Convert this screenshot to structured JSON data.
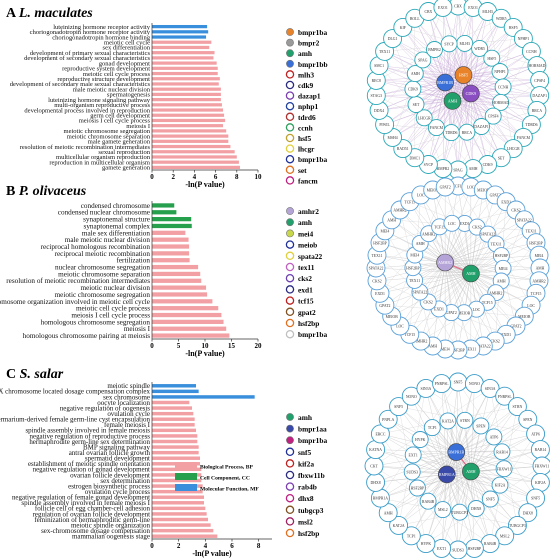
{
  "panels": [
    {
      "letter": "A",
      "species": "L. maculates",
      "xlabel": "-ln(P value)",
      "xticks": [
        0,
        2,
        4,
        6,
        8,
        10
      ],
      "xmax": 10,
      "chart_data": {
        "type": "bar",
        "orientation": "horizontal",
        "xlabel": "-ln(P value)",
        "xlim": [
          0,
          10
        ],
        "categories": [
          "luteinizing hormone receptor activity",
          "choriogonadotropin hormone receptor activity",
          "choriogonadotropin hormone binding",
          "meiotic cell cycle",
          "sex differentiation",
          "development of primary sexual characteristics",
          "development of secondary sexual characteristics",
          "gonad development",
          "reproductive system development",
          "meiotic cell cycle process",
          "reproductive structure development",
          "development of secondary male sexual characteristics",
          "male meiotic nuclear division",
          "spermatogenesis",
          "luteinizing hormone signaling pathway",
          "multi-organism reproductive process",
          "developmental process involved in reproduction",
          "germ cell development",
          "meiosis I cell cycle process",
          "meiosis I",
          "meiotic chromosome segregation",
          "meiotic chromosome separation",
          "male gamete generation",
          "resolution of meiotic recombination intermediates",
          "sexual reproduction",
          "multicellular organism reproduction",
          "reproduction in multicellular organism",
          "gamete generation"
        ],
        "values": [
          5.2,
          5.3,
          5.1,
          5.6,
          5.4,
          5.9,
          5.8,
          6.1,
          6.2,
          6.2,
          6.4,
          6.3,
          6.5,
          6.5,
          6.5,
          6.6,
          6.7,
          6.8,
          6.9,
          6.7,
          7.0,
          7.2,
          7.2,
          7.4,
          7.8,
          8.0,
          8.2,
          8.3
        ],
        "bar_colors": [
          "#3a8fdc",
          "#3a8fdc",
          "#3a8fdc",
          "#f2a0a4",
          "#f2a0a4",
          "#f2a0a4",
          "#f2a0a4",
          "#f2a0a4",
          "#f2a0a4",
          "#f2a0a4",
          "#f2a0a4",
          "#f2a0a4",
          "#f2a0a4",
          "#f2a0a4",
          "#f2a0a4",
          "#f2a0a4",
          "#f2a0a4",
          "#f2a0a4",
          "#f2a0a4",
          "#f2a0a4",
          "#f2a0a4",
          "#f2a0a4",
          "#f2a0a4",
          "#f2a0a4",
          "#f2a0a4",
          "#f2a0a4",
          "#f2a0a4",
          "#f2a0a4"
        ]
      },
      "genes": [
        {
          "name": "bmpr1ba",
          "fill": "#e8832a"
        },
        {
          "name": "bmpr2",
          "fill": "#9a9a9a"
        },
        {
          "name": "amh",
          "fill": "#22a06b"
        },
        {
          "name": "bmpr1bb",
          "fill": "#3a6fd8"
        },
        {
          "name": "mlh3",
          "fill": "#ffffff",
          "stroke": "#c02020"
        },
        {
          "name": "cdk9",
          "fill": "#ffffff",
          "stroke": "#2a2a80"
        },
        {
          "name": "dazap1",
          "fill": "#ffffff",
          "stroke": "#7a3fb0"
        },
        {
          "name": "nphp1",
          "fill": "#ffffff",
          "stroke": "#2040a0"
        },
        {
          "name": "tdrd6",
          "fill": "#ffffff",
          "stroke": "#b03030"
        },
        {
          "name": "ccnh",
          "fill": "#ffffff",
          "stroke": "#30a060"
        },
        {
          "name": "hsf5",
          "fill": "#ffffff",
          "stroke": "#c0a030"
        },
        {
          "name": "lhcgr",
          "fill": "#ffffff",
          "stroke": "#e0d040"
        },
        {
          "name": "bmpr1ba",
          "fill": "#ffffff",
          "stroke": "#20309a"
        },
        {
          "name": "set",
          "fill": "#ffffff",
          "stroke": "#e07020"
        },
        {
          "name": "fancm",
          "fill": "#ffffff",
          "stroke": "#c02080"
        }
      ],
      "network_labels": [
        "CBX",
        "EXO1",
        "MLH3",
        "WDR5",
        "HSF5",
        "NPHP1",
        "CCNH",
        "HORMAD",
        "CPSF4",
        "DAZAP1",
        "BRCA",
        "TDRD6",
        "FANCM",
        "LHCGR",
        "SET",
        "CDK9",
        "AMH",
        "SPAG",
        "BMPR2",
        "SYCP",
        "DMC1",
        "RAD51",
        "MSH4",
        "PIWIL",
        "DDX4",
        "STAG3",
        "REC8",
        "SMC1",
        "TEX11",
        "DLG1",
        "KIF",
        "BOLL"
      ],
      "center_nodes": [
        "CDK9",
        "AMH",
        "BMPR1B",
        "HSF5"
      ]
    },
    {
      "letter": "B",
      "species": "P. olivaceus",
      "xlabel": "-ln(P value)",
      "xticks": [
        0,
        5,
        10,
        15,
        20
      ],
      "xmax": 20,
      "chart_data": {
        "type": "bar",
        "orientation": "horizontal",
        "xlabel": "-ln(P value)",
        "xlim": [
          0,
          20
        ],
        "categories": [
          "condensed chromosome",
          "condensed nuclear chromosome",
          "synaptonemal structure",
          "synaptonemal complex",
          "male sex differentiation",
          "male meiotic nuclear division",
          "reciprocal homologous recombination",
          "reciprocal meiotic recombination",
          "fertilization",
          "nuclear chromosome segregation",
          "meiotic chromosome separation",
          "resolution of meiotic recombination intermediates",
          "meiotic nuclear division",
          "meiotic chromosome segregation",
          "chromosome organization involved in meiotic cell cycle",
          "meiotic cell cycle process",
          "meiosis I cell cycle process",
          "homologous chromosome segregation",
          "meiosis I",
          "homologous chromosome pairing at meiosis"
        ],
        "values": [
          4.2,
          4.6,
          7.4,
          7.5,
          6.3,
          6.9,
          7.0,
          7.0,
          7.1,
          8.7,
          9.1,
          9.3,
          10.2,
          10.4,
          11.4,
          12.5,
          13.1,
          13.5,
          14.0,
          14.6
        ],
        "bar_colors": [
          "#27a04e",
          "#27a04e",
          "#27a04e",
          "#27a04e",
          "#f2a0a4",
          "#f2a0a4",
          "#f2a0a4",
          "#f2a0a4",
          "#f2a0a4",
          "#f2a0a4",
          "#f2a0a4",
          "#f2a0a4",
          "#f2a0a4",
          "#f2a0a4",
          "#f2a0a4",
          "#f2a0a4",
          "#f2a0a4",
          "#f2a0a4",
          "#f2a0a4",
          "#f2a0a4"
        ]
      },
      "genes": [
        {
          "name": "amhr2",
          "fill": "#b5a4d8"
        },
        {
          "name": "amh",
          "fill": "#22a06b"
        },
        {
          "name": "mei4",
          "fill": "#c8d84a"
        },
        {
          "name": "meiob",
          "fill": "#ffffff",
          "stroke": "#20309a"
        },
        {
          "name": "spata22",
          "fill": "#ffffff",
          "stroke": "#e0d040"
        },
        {
          "name": "tex11",
          "fill": "#ffffff",
          "stroke": "#c060c0"
        },
        {
          "name": "cks2",
          "fill": "#ffffff",
          "stroke": "#6a40b0"
        },
        {
          "name": "exd1",
          "fill": "#ffffff",
          "stroke": "#2a2a80"
        },
        {
          "name": "tcf15",
          "fill": "#ffffff",
          "stroke": "#c02020"
        },
        {
          "name": "gpat2",
          "fill": "#ffffff",
          "stroke": "#805020"
        },
        {
          "name": "hsf2bp",
          "fill": "#ffffff",
          "stroke": "#e07020"
        },
        {
          "name": "bmpr1ba",
          "fill": "#ffffff",
          "stroke": "#c0c0c0"
        }
      ],
      "network_labels": [
        "TCF15",
        "LOC",
        "MEIOB",
        "GPAT2",
        "EXD1",
        "CKS2",
        "SPATA22",
        "TEX11",
        "HSF2BP",
        "MEI4",
        "AMH",
        "AMHR2"
      ],
      "center_nodes": [
        "AMH",
        "AMHR2"
      ]
    },
    {
      "letter": "C",
      "species": "S. salar",
      "xlabel": "-ln(P value)",
      "xticks": [
        0,
        2,
        4,
        6,
        8
      ],
      "xmax": 9,
      "chart_data": {
        "type": "bar",
        "orientation": "horizontal",
        "xlabel": "-ln(P value)",
        "xlim": [
          0,
          9
        ],
        "categories": [
          "meiotic spindle",
          "X chromosome located dosage compensation complex",
          "sex chromosome",
          "oocyte localization",
          "negative regulation of oogenesis",
          "ovulation cycle",
          "germarium-derived female germ-line cyst encapsulation",
          "female meiosis I",
          "spindle assembly involved in female meiosis",
          "negative regulation of reproductive process",
          "hermaphrodite germ-line sex determination",
          "BMP signaling pathway",
          "antral ovarian follicle growth",
          "spermatid development",
          "establishment of meiotic spindle orientation",
          "negative regulation of gonad development",
          "ovarian follicle development",
          "sex determination",
          "estrogen biosynthetic process",
          "ovulation cycle process",
          "negative regulation of female gonad development",
          "spindle assembly involved in female meiosis I",
          "follicle cell of egg chamber-cell adhesion",
          "regulation of ovarian follicle development",
          "feminization of hermaphroditic germ-line",
          "meiotic spindle organization",
          "sex-chromosome dosage compensation",
          "mammalian oogenesis stage"
        ],
        "values": [
          3.3,
          3.5,
          7.7,
          2.8,
          3.0,
          3.1,
          3.2,
          3.2,
          3.3,
          3.4,
          3.4,
          3.5,
          3.5,
          3.6,
          3.6,
          3.7,
          3.7,
          3.7,
          3.8,
          3.8,
          3.9,
          3.9,
          4.0,
          4.1,
          4.2,
          4.4,
          4.6,
          4.9
        ],
        "bar_colors": [
          "#3a8fdc",
          "#3a8fdc",
          "#3a8fdc",
          "#f2a0a4",
          "#f2a0a4",
          "#f2a0a4",
          "#f2a0a4",
          "#f2a0a4",
          "#f2a0a4",
          "#f2a0a4",
          "#f2a0a4",
          "#f2a0a4",
          "#f2a0a4",
          "#f2a0a4",
          "#f2a0a4",
          "#f2a0a4",
          "#f2a0a4",
          "#f2a0a4",
          "#f2a0a4",
          "#f2a0a4",
          "#f2a0a4",
          "#f2a0a4",
          "#f2a0a4",
          "#f2a0a4",
          "#f2a0a4",
          "#f2a0a4",
          "#f2a0a4",
          "#f2a0a4"
        ]
      },
      "legend": [
        {
          "label": "Biological Process,  BP",
          "color": "#f2a0a4"
        },
        {
          "label": "Cell Component,  CC",
          "color": "#27a04e"
        },
        {
          "label": "Molecular Function,  MF",
          "color": "#3a8fdc"
        }
      ],
      "genes": [
        {
          "name": "amh",
          "fill": "#22a06b"
        },
        {
          "name": "bmpr1aa",
          "fill": "#3a4aa8"
        },
        {
          "name": "bmpr1ba",
          "fill": "#c02080"
        },
        {
          "name": "snf5",
          "fill": "#ffffff",
          "stroke": "#20309a"
        },
        {
          "name": "kif2a",
          "fill": "#ffffff",
          "stroke": "#c02020"
        },
        {
          "name": "fbxw11b",
          "fill": "#ffffff",
          "stroke": "#2a2a80"
        },
        {
          "name": "rab4b",
          "fill": "#ffffff",
          "stroke": "#7a3fb0"
        },
        {
          "name": "dhx8",
          "fill": "#ffffff",
          "stroke": "#c02080"
        },
        {
          "name": "tubgcp3",
          "fill": "#ffffff",
          "stroke": "#805020"
        },
        {
          "name": "msl2",
          "fill": "#ffffff",
          "stroke": "#a02060"
        },
        {
          "name": "hsf2bp",
          "fill": "#ffffff",
          "stroke": "#e07020"
        }
      ],
      "network_labels": [
        "SNF5",
        "NONO",
        "SIN3A",
        "PNRPSL",
        "STRN",
        "SPEN",
        "ATP6",
        "RAB14",
        "FBXW11",
        "KIF2A",
        "SNF5",
        "DHX8",
        "TUBGCP3",
        "MSL2",
        "RAB4B",
        "HSF2BP",
        "SUDS3",
        "EXT1",
        "HYPK",
        "TCP1",
        "KAT2A",
        "AMH",
        "BMPR1A",
        "DHX8",
        "CKT",
        "KATNA",
        "ERCC",
        "PNPLA"
      ],
      "center_nodes": [
        "AMH",
        "BMPR1A",
        "BMPR1B"
      ]
    }
  ]
}
